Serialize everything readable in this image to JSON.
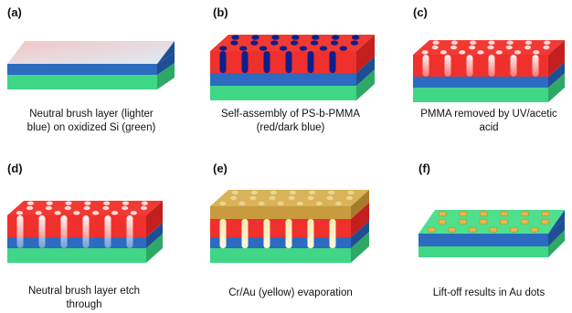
{
  "panels": [
    {
      "label": "(a)",
      "caption_lines": [
        "Neutral brush layer (lighter",
        "blue) on oxidized Si (green)"
      ]
    },
    {
      "label": "(b)",
      "caption_lines": [
        "Self-assembly of PS-b-PMMA",
        "(red/dark blue)"
      ]
    },
    {
      "label": "(c)",
      "caption_lines": [
        "PMMA removed by UV/acetic",
        "acid"
      ]
    },
    {
      "label": "(d)",
      "caption_lines": [
        "Neutral brush layer etch",
        "through"
      ]
    },
    {
      "label": "(e)",
      "caption_lines": [
        "Cr/Au (yellow) evaporation"
      ]
    },
    {
      "label": "(f)",
      "caption_lines": [
        "Lift-off results in Au dots"
      ]
    }
  ],
  "colors": {
    "si_green": "#3ddc84",
    "brush_blue": "#2f6fc4",
    "ps_red": "#f0302c",
    "pmma_dark_blue": "#0d1f8c",
    "au_yellow": "#d9b35a"
  }
}
